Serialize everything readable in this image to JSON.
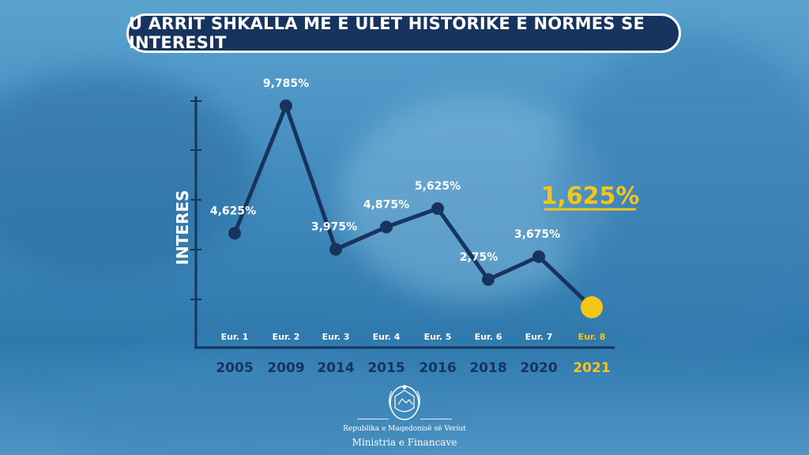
{
  "title": "U ARRIT SHKALLA MË E ULËT HISTORIKE E NORMËS SË INTERESIT",
  "colors": {
    "navy": "#17345f",
    "highlight": "#f5c518",
    "white": "#ffffff"
  },
  "chart_data": {
    "type": "line",
    "ylabel": "INTERES",
    "x": [
      "2005",
      "2009",
      "2014",
      "2015",
      "2016",
      "2018",
      "2020",
      "2021"
    ],
    "issue_labels": [
      "Eur. 1",
      "Eur. 2",
      "Eur. 3",
      "Eur. 4",
      "Eur. 5",
      "Eur. 6",
      "Eur. 7",
      "Eur. 8"
    ],
    "values": [
      4.625,
      9.785,
      3.975,
      4.875,
      5.625,
      2.75,
      3.675,
      1.625
    ],
    "value_labels": [
      "4,625%",
      "9,785%",
      "3,975%",
      "4,875%",
      "5,625%",
      "2,75%",
      "3,675%",
      "1,625%"
    ],
    "highlight_index": 7,
    "grid": false
  },
  "footer": {
    "line1": "Republika e Maqedonisë së Veriut",
    "line2": "Ministria e Financave"
  }
}
